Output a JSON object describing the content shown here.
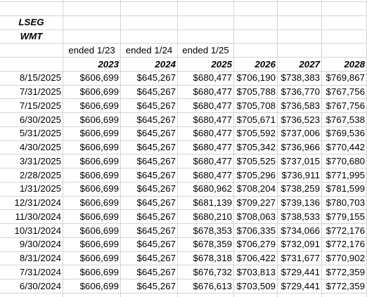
{
  "labels": {
    "source": "LSEG",
    "ticker": "WMT"
  },
  "fiscal_end_labels": [
    "ended 1/23",
    "ended 1/24",
    "ended 1/25"
  ],
  "year_headers": [
    "2023",
    "2024",
    "2025",
    "2026",
    "2027",
    "2028"
  ],
  "rows": [
    {
      "date": "8/15/2025",
      "v": [
        "$606,699",
        "$645,267",
        "$680,477",
        "$706,190",
        "$738,383",
        "$769,867"
      ]
    },
    {
      "date": "7/31/2025",
      "v": [
        "$606,699",
        "$645,267",
        "$680,477",
        "$705,788",
        "$736,770",
        "$767,756"
      ]
    },
    {
      "date": "7/15/2025",
      "v": [
        "$606,699",
        "$645,267",
        "$680,477",
        "$705,708",
        "$736,583",
        "$767,756"
      ]
    },
    {
      "date": "6/30/2025",
      "v": [
        "$606,699",
        "$645,267",
        "$680,477",
        "$705,671",
        "$736,523",
        "$767,538"
      ]
    },
    {
      "date": "5/31/2025",
      "v": [
        "$606,699",
        "$645,267",
        "$680,477",
        "$705,592",
        "$737,006",
        "$769,536"
      ]
    },
    {
      "date": "4/30/2025",
      "v": [
        "$606,699",
        "$645,267",
        "$680,477",
        "$705,342",
        "$736,966",
        "$770,442"
      ]
    },
    {
      "date": "3/31/2025",
      "v": [
        "$606,699",
        "$645,267",
        "$680,477",
        "$705,525",
        "$737,015",
        "$770,680"
      ]
    },
    {
      "date": "2/28/2025",
      "v": [
        "$606,699",
        "$645,267",
        "$680,477",
        "$705,296",
        "$736,911",
        "$771,995"
      ]
    },
    {
      "date": "1/31/2025",
      "v": [
        "$606,699",
        "$645,267",
        "$680,962",
        "$708,204",
        "$738,259",
        "$781,599"
      ]
    },
    {
      "date": "12/31/2024",
      "v": [
        "$606,699",
        "$645,267",
        "$681,139",
        "$709,227",
        "$739,136",
        "$780,703"
      ]
    },
    {
      "date": "11/30/2024",
      "v": [
        "$606,699",
        "$645,267",
        "$680,210",
        "$708,063",
        "$738,533",
        "$779,155"
      ]
    },
    {
      "date": "10/31/2024",
      "v": [
        "$606,699",
        "$645,267",
        "$678,353",
        "$706,335",
        "$734,066",
        "$772,176"
      ]
    },
    {
      "date": "9/30/2024",
      "v": [
        "$606,699",
        "$645,267",
        "$678,359",
        "$706,279",
        "$732,091",
        "$772,176"
      ]
    },
    {
      "date": "8/31/2024",
      "v": [
        "$606,699",
        "$645,267",
        "$678,318",
        "$706,422",
        "$731,677",
        "$770,902"
      ]
    },
    {
      "date": "7/31/2024",
      "v": [
        "$606,699",
        "$645,267",
        "$676,732",
        "$703,813",
        "$729,441",
        "$772,359"
      ]
    },
    {
      "date": "6/30/2024",
      "v": [
        "$606,699",
        "$645,267",
        "$676,613",
        "$703,509",
        "$729,441",
        "$772,359"
      ]
    }
  ]
}
